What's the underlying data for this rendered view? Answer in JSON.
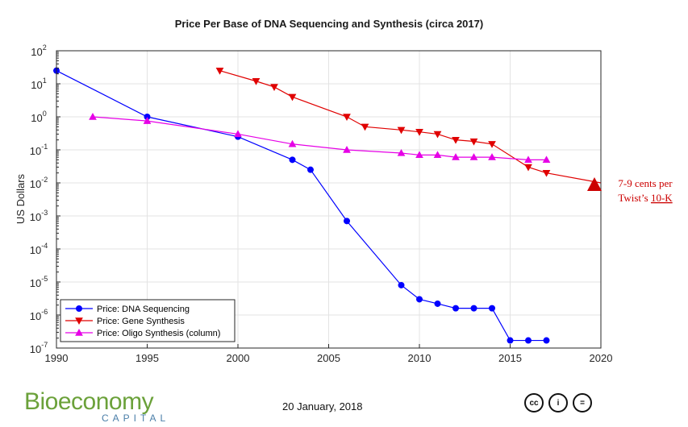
{
  "chart_data": {
    "type": "line",
    "title": "Price Per Base of DNA Sequencing and Synthesis (circa 2017)",
    "xlabel": "",
    "ylabel": "US Dollars",
    "yscale": "log",
    "xlim": [
      1990,
      2020
    ],
    "ylim_exp": [
      -7,
      2
    ],
    "grid": true,
    "x_ticks": [
      1990,
      1995,
      2000,
      2005,
      2010,
      2015,
      2020
    ],
    "y_ticks": [
      {
        "base": "10",
        "exp": "2"
      },
      {
        "base": "10",
        "exp": "1"
      },
      {
        "base": "10",
        "exp": "0"
      },
      {
        "base": "10",
        "exp": "-1"
      },
      {
        "base": "10",
        "exp": "-2"
      },
      {
        "base": "10",
        "exp": "-3"
      },
      {
        "base": "10",
        "exp": "-4"
      },
      {
        "base": "10",
        "exp": "-5"
      },
      {
        "base": "10",
        "exp": "-6"
      },
      {
        "base": "10",
        "exp": "-7"
      }
    ],
    "legend_position": "bottom-left",
    "series": [
      {
        "name": "Price: DNA Sequencing",
        "color": "#0000ff",
        "marker": "circle",
        "x": [
          1990,
          1995,
          2000,
          2003,
          2004,
          2006,
          2009,
          2010,
          2011,
          2012,
          2013,
          2014,
          2015,
          2016,
          2017
        ],
        "y": [
          25,
          1,
          0.25,
          0.05,
          0.025,
          0.0007,
          8e-06,
          3e-06,
          2.2e-06,
          1.6e-06,
          1.6e-06,
          1.6e-06,
          1.7e-07,
          1.7e-07,
          1.7e-07
        ]
      },
      {
        "name": "Price: Gene Synthesis",
        "color": "#e00000",
        "marker": "triangle-down",
        "x": [
          1999,
          2001,
          2002,
          2003,
          2006,
          2007,
          2009,
          2010,
          2011,
          2012,
          2013,
          2014,
          2016,
          2017,
          2020
        ],
        "y": [
          25,
          12,
          8,
          4,
          1,
          0.5,
          0.4,
          0.35,
          0.3,
          0.2,
          0.18,
          0.15,
          0.03,
          0.02,
          0.01
        ]
      },
      {
        "name": "Price: Oligo Synthesis (column)",
        "color": "#e600e6",
        "marker": "triangle-up",
        "x": [
          1992,
          1995,
          2000,
          2003,
          2006,
          2009,
          2010,
          2011,
          2012,
          2013,
          2014,
          2016,
          2017
        ],
        "y": [
          1,
          0.75,
          0.3,
          0.15,
          0.1,
          0.08,
          0.07,
          0.07,
          0.06,
          0.06,
          0.06,
          0.05,
          0.05
        ]
      }
    ],
    "annotation": {
      "marker_x": 2020,
      "marker_y": 0.01,
      "line1": "7-9 cents per",
      "line2_prefix": "Twist’s ",
      "line2_link": "10-K",
      "color": "#cc0000"
    }
  },
  "footer": {
    "date": "20 January, 2018",
    "logo_main": "Bioeconomy",
    "logo_sub": "CAPITAL",
    "license_icons": [
      "cc",
      "i",
      "="
    ]
  }
}
